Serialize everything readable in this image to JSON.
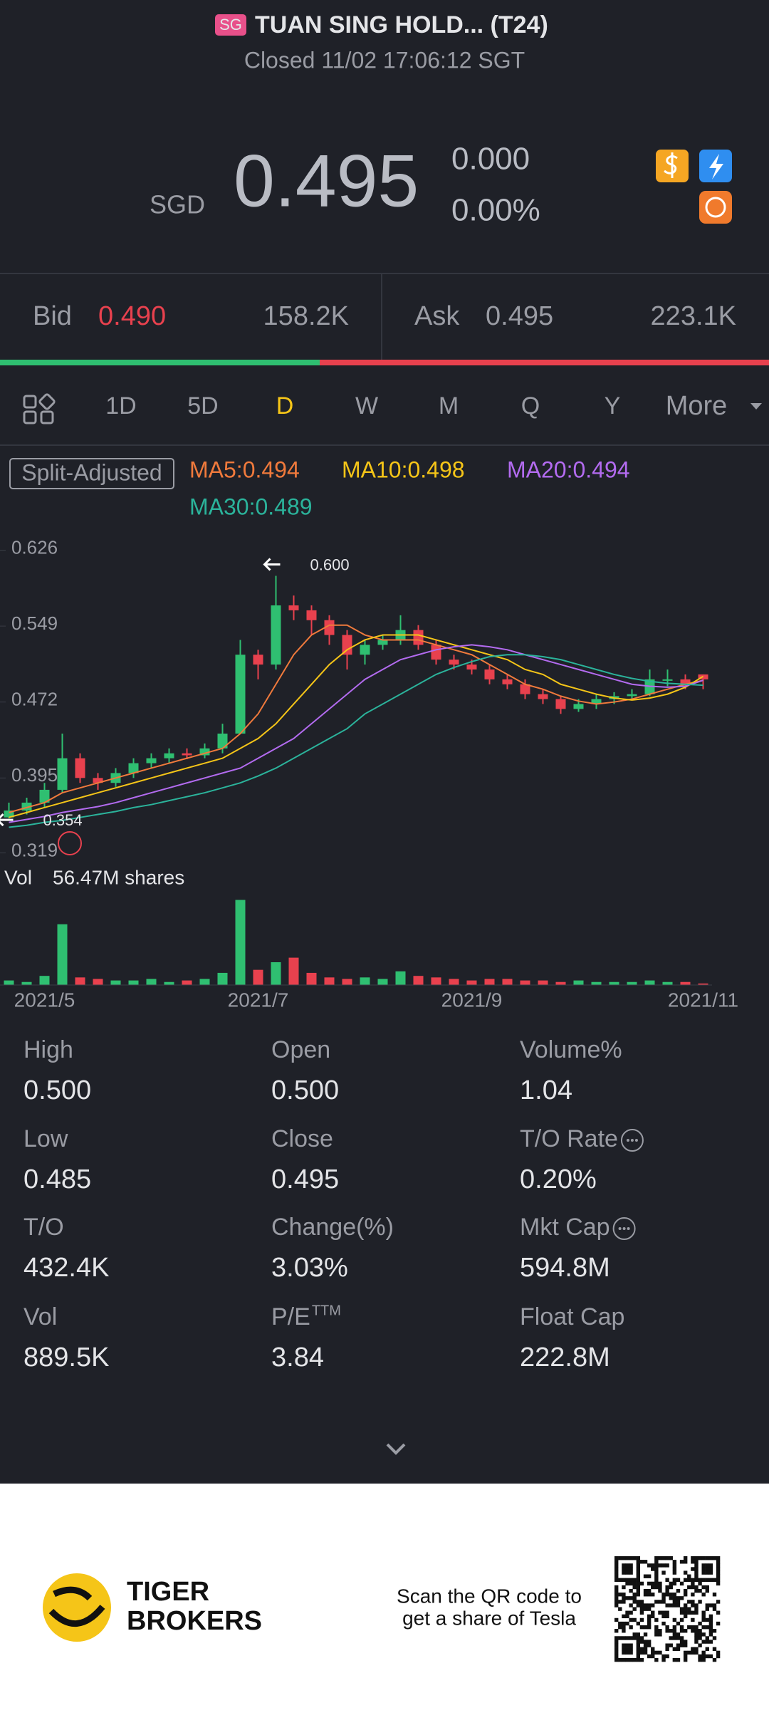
{
  "header": {
    "badge": "SG",
    "title": "TUAN SING HOLD... (T24)",
    "status": "Closed 11/02 17:06:12 SGT"
  },
  "quote": {
    "currency": "SGD",
    "price": "0.495",
    "change": "0.000",
    "change_pct": "0.00%"
  },
  "order_book": {
    "bid_label": "Bid",
    "bid": "0.490",
    "bid_size": "158.2K",
    "ask_label": "Ask",
    "ask": "0.495",
    "ask_size": "223.1K"
  },
  "tabs": [
    "1D",
    "5D",
    "D",
    "W",
    "M",
    "Q",
    "Y",
    "More"
  ],
  "chart_data": {
    "type": "candlestick",
    "split_label": "Split-Adjusted",
    "categories": [
      null,
      null,
      "2021/5",
      null,
      null,
      null,
      null,
      null,
      null,
      null,
      null,
      null,
      null,
      null,
      "2021/7",
      null,
      null,
      null,
      null,
      null,
      null,
      null,
      null,
      null,
      null,
      null,
      "2021/9",
      null,
      null,
      null,
      null,
      null,
      null,
      null,
      null,
      null,
      null,
      null,
      null,
      "2021/11"
    ],
    "open": [
      0.355,
      0.362,
      0.37,
      0.383,
      0.415,
      0.395,
      0.39,
      0.4,
      0.41,
      0.415,
      0.42,
      0.418,
      0.425,
      0.44,
      0.52,
      0.51,
      0.57,
      0.565,
      0.555,
      0.54,
      0.52,
      0.53,
      0.535,
      0.545,
      0.53,
      0.515,
      0.51,
      0.505,
      0.495,
      0.49,
      0.48,
      0.475,
      0.465,
      0.47,
      0.475,
      0.478,
      0.48,
      0.495,
      0.495,
      0.5
    ],
    "high": [
      0.37,
      0.375,
      0.39,
      0.44,
      0.42,
      0.4,
      0.405,
      0.415,
      0.42,
      0.425,
      0.425,
      0.43,
      0.45,
      0.535,
      0.525,
      0.6,
      0.58,
      0.57,
      0.56,
      0.545,
      0.535,
      0.54,
      0.56,
      0.55,
      0.535,
      0.52,
      0.515,
      0.51,
      0.5,
      0.495,
      0.485,
      0.478,
      0.475,
      0.48,
      0.482,
      0.485,
      0.505,
      0.505,
      0.5,
      0.5
    ],
    "low": [
      0.354,
      0.358,
      0.365,
      0.38,
      0.39,
      0.383,
      0.386,
      0.395,
      0.405,
      0.41,
      0.414,
      0.415,
      0.42,
      0.44,
      0.495,
      0.505,
      0.555,
      0.54,
      0.53,
      0.505,
      0.51,
      0.525,
      0.53,
      0.525,
      0.51,
      0.505,
      0.5,
      0.49,
      0.485,
      0.475,
      0.47,
      0.46,
      0.462,
      0.465,
      0.47,
      0.474,
      0.478,
      0.488,
      0.485,
      0.485
    ],
    "close": [
      0.362,
      0.37,
      0.383,
      0.415,
      0.395,
      0.39,
      0.4,
      0.41,
      0.415,
      0.42,
      0.418,
      0.425,
      0.44,
      0.52,
      0.51,
      0.57,
      0.565,
      0.555,
      0.54,
      0.52,
      0.53,
      0.535,
      0.545,
      0.53,
      0.515,
      0.51,
      0.505,
      0.495,
      0.49,
      0.48,
      0.475,
      0.465,
      0.47,
      0.475,
      0.478,
      0.48,
      0.495,
      0.495,
      0.49,
      0.495
    ],
    "up_color": "#2fbf71",
    "down_color": "#e8414e",
    "series": [
      {
        "name": "MA5:0.494",
        "color": "#f07a3c",
        "values": [
          0.36,
          0.365,
          0.37,
          0.38,
          0.385,
          0.39,
          0.395,
          0.4,
          0.405,
          0.41,
          0.415,
          0.42,
          0.425,
          0.44,
          0.46,
          0.49,
          0.52,
          0.54,
          0.55,
          0.55,
          0.54,
          0.535,
          0.535,
          0.535,
          0.53,
          0.525,
          0.52,
          0.51,
          0.5,
          0.49,
          0.485,
          0.478,
          0.473,
          0.47,
          0.472,
          0.475,
          0.48,
          0.485,
          0.49,
          0.494
        ]
      },
      {
        "name": "MA10:0.498",
        "color": "#f5c518",
        "values": [
          0.355,
          0.36,
          0.365,
          0.37,
          0.375,
          0.38,
          0.385,
          0.39,
          0.395,
          0.4,
          0.405,
          0.41,
          0.415,
          0.425,
          0.435,
          0.45,
          0.47,
          0.49,
          0.51,
          0.525,
          0.535,
          0.54,
          0.54,
          0.54,
          0.535,
          0.53,
          0.525,
          0.52,
          0.515,
          0.505,
          0.5,
          0.49,
          0.485,
          0.48,
          0.476,
          0.474,
          0.476,
          0.48,
          0.487,
          0.498
        ]
      },
      {
        "name": "MA20:0.494",
        "color": "#b36bf0",
        "values": [
          0.35,
          0.353,
          0.356,
          0.36,
          0.363,
          0.366,
          0.37,
          0.375,
          0.38,
          0.385,
          0.39,
          0.395,
          0.4,
          0.405,
          0.415,
          0.425,
          0.435,
          0.45,
          0.465,
          0.48,
          0.495,
          0.505,
          0.515,
          0.52,
          0.525,
          0.528,
          0.53,
          0.528,
          0.525,
          0.52,
          0.515,
          0.51,
          0.505,
          0.5,
          0.495,
          0.49,
          0.488,
          0.487,
          0.488,
          0.494
        ]
      },
      {
        "name": "MA30:0.489",
        "color": "#2bb39b",
        "values": [
          0.345,
          0.347,
          0.35,
          0.352,
          0.355,
          0.358,
          0.361,
          0.365,
          0.368,
          0.372,
          0.376,
          0.38,
          0.385,
          0.39,
          0.397,
          0.405,
          0.415,
          0.425,
          0.435,
          0.445,
          0.46,
          0.47,
          0.48,
          0.49,
          0.5,
          0.507,
          0.513,
          0.518,
          0.52,
          0.52,
          0.518,
          0.515,
          0.51,
          0.505,
          0.5,
          0.496,
          0.493,
          0.491,
          0.49,
          0.489
        ]
      }
    ],
    "ylim": [
      0.31,
      0.635
    ],
    "yticks": [
      0.626,
      0.549,
      0.472,
      0.395,
      0.319
    ],
    "annotations": [
      {
        "index": 15,
        "value": 0.6,
        "label": "0.600"
      },
      {
        "index": 0,
        "value": 0.354,
        "label": "0.354"
      }
    ],
    "volume": {
      "label": "Vol",
      "value_label": "56.47M shares",
      "ylim": [
        0,
        60
      ],
      "values": [
        3,
        2,
        6,
        40,
        5,
        4,
        3,
        3,
        4,
        2,
        3,
        4,
        8,
        56,
        10,
        15,
        18,
        8,
        5,
        4,
        5,
        4,
        9,
        6,
        5,
        4,
        3,
        4,
        4,
        3,
        3,
        2,
        3,
        2,
        2,
        2,
        3,
        2,
        2,
        1
      ]
    }
  },
  "stats": [
    {
      "label": "High",
      "value": "0.500"
    },
    {
      "label": "Open",
      "value": "0.500"
    },
    {
      "label": "Volume%",
      "value": "1.04"
    },
    {
      "label": "Low",
      "value": "0.485"
    },
    {
      "label": "Close",
      "value": "0.495"
    },
    {
      "label": "T/O Rate",
      "value": "0.20%",
      "info": true
    },
    {
      "label": "T/O",
      "value": "432.4K"
    },
    {
      "label": "Change(%)",
      "value": "3.03%"
    },
    {
      "label": "Mkt Cap",
      "value": "594.8M",
      "info": true
    },
    {
      "label": "Vol",
      "value": "889.5K"
    },
    {
      "label": "P/E",
      "sup": "TTM",
      "value": "3.84"
    },
    {
      "label": "Float Cap",
      "value": "222.8M"
    }
  ],
  "footer": {
    "brand": [
      "TIGER",
      "BROKERS"
    ],
    "cta": [
      "Scan the QR code to",
      "get a share of Tesla"
    ]
  }
}
